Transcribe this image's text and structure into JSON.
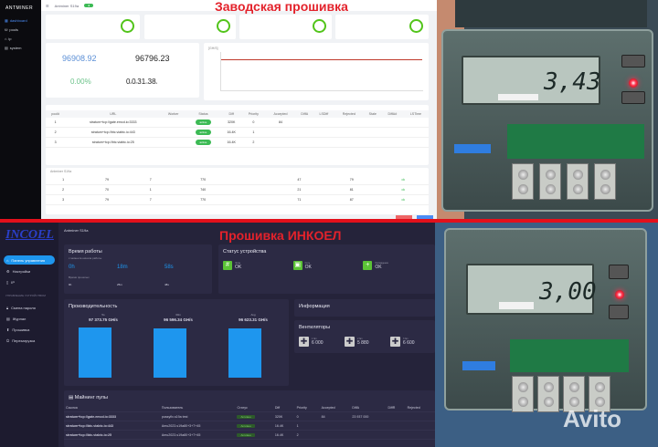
{
  "top": {
    "overlay_title": "Заводская прошивка",
    "brand": "ANTMINER",
    "header": {
      "model": "Antminer S19a",
      "status_badge": "●"
    },
    "sidebar": [
      {
        "label": "dashboard",
        "active": true
      },
      {
        "label": "pools"
      },
      {
        "label": "ip"
      },
      {
        "label": "system"
      }
    ],
    "hashrate": {
      "rt": "96908.92",
      "avg": "96796.23",
      "unit": "GH/s",
      "reject": "0.00%",
      "uptime": [
        "0",
        "d",
        "0",
        "h",
        "31",
        "m",
        "38",
        "s"
      ]
    },
    "chart_title": "[GH/S]",
    "pools": {
      "headers": [
        "pool#",
        "URL",
        "Worker",
        "Status",
        "Diff",
        "Priority",
        "Accepted",
        "DiffA",
        "LSDiff",
        "Rejected",
        "Stale",
        "DiffA#",
        "LSTime"
      ],
      "rows": [
        [
          "1",
          "stratum+tcp://gate.emcd.io:3333",
          "",
          "active",
          "320K",
          "0",
          "84",
          "",
          "",
          "",
          "",
          "",
          ""
        ],
        [
          "2",
          "stratum+tcp://btc.viabtc.io:443",
          "",
          "active",
          "16.4K",
          "1",
          "",
          "",
          "",
          "",
          "",
          "",
          ""
        ],
        [
          "3",
          "stratum+tcp://btc.viabtc.io:25",
          "",
          "active",
          "16.4K",
          "2",
          "",
          "",
          "",
          "",
          "",
          "",
          ""
        ]
      ]
    },
    "chains": {
      "title": "Antminer S19a",
      "headers": [
        "chain#",
        "",
        "",
        "",
        "",
        "",
        "",
        "",
        "Status"
      ],
      "rows": [
        [
          "1",
          "79",
          "7",
          "770",
          "",
          "",
          "47",
          "79",
          "ok"
        ],
        [
          "2",
          "70",
          "1",
          "740",
          "",
          "",
          "21",
          "81",
          "ok"
        ],
        [
          "3",
          "79",
          "7",
          "770",
          "",
          "",
          "71",
          "87",
          "ok"
        ]
      ]
    },
    "footer": {
      "cancel": "",
      "save": ""
    }
  },
  "bottom": {
    "overlay_title": "Прошивка ИНКОЕЛ",
    "logo": "INCOEL",
    "header": {
      "model": "Antminer S19a"
    },
    "sidebar": [
      {
        "label": "Панель управления",
        "active": true
      },
      {
        "label": "Настройки"
      },
      {
        "label": "IP"
      }
    ],
    "sidebar_section": "УПРАВЛЕНИЕ УСТРОЙСТВОМ",
    "sidebar2": [
      {
        "label": "Смена пароля"
      },
      {
        "label": "Журнал"
      },
      {
        "label": "Прошивка"
      },
      {
        "label": "Перезагрузка"
      }
    ],
    "uptime": {
      "title": "Время работы",
      "subtitle": "с момента начала работы",
      "h": "0h",
      "m": "18m",
      "s": "58s",
      "sub2": "Время прошлых",
      "v": [
        "9h",
        "25m",
        "48s"
      ]
    },
    "status": {
      "title": "Статус устройства",
      "items": [
        {
          "label": "Чипы",
          "value": "OK",
          "icon": "#"
        },
        {
          "label": "Сеть",
          "value": "OK",
          "icon": "▣"
        },
        {
          "label": "Охлаждение",
          "value": "OK",
          "icon": "+"
        }
      ]
    },
    "perf": {
      "title": "Производительность",
      "items": [
        {
          "label": "5s",
          "value": "97 373.75 GH/s"
        },
        {
          "label": "30m",
          "value": "96 596.34 GH/s"
        },
        {
          "label": "Avg",
          "value": "96 623.31 GH/s"
        }
      ]
    },
    "info_title": "Информация",
    "fans": {
      "title": "Вентиляторы",
      "items": [
        {
          "label": "1 fan",
          "value": "6 000"
        },
        {
          "label": "2 fan",
          "value": "5 880"
        },
        {
          "label": "3 fan",
          "value": "6 600"
        }
      ]
    },
    "pools": {
      "title": "Майнинг пулы",
      "headers": [
        "Ссылка",
        "Пользователь",
        "Статус",
        "Diff",
        "Priority",
        "Accepted",
        "DiffA",
        "DiffR",
        "Rejected"
      ],
      "rows": [
        [
          "stratum+tcp://gate.emcd.io:3333",
          "pussyfix.s19a test",
          "Активен",
          "320K",
          "0",
          "84",
          "23 937 000",
          "",
          ""
        ],
        [
          "stratum+tcp://btc.viabtc.io:443",
          "Amu2023.s19a80+3+7+45",
          "Активен",
          "16.4K",
          "1",
          "",
          "",
          "",
          ""
        ],
        [
          "stratum+tcp://btc.viabtc.io:25",
          "Amu2023.s19a80+3+7+45",
          "Активен",
          "16.4K",
          "2",
          "",
          "",
          "",
          ""
        ]
      ]
    }
  },
  "photos": {
    "reading_top": "3,43",
    "reading_bottom": "3,00",
    "unit": "kWh",
    "watermark": "Avito",
    "accent_led": "#ff3050"
  }
}
